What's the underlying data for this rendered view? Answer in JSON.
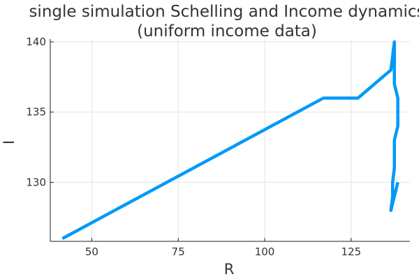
{
  "chart_data": {
    "type": "line",
    "title": "single simulation Schelling and Income dynamics",
    "subtitle": "(uniform income data)",
    "xlabel": "R",
    "ylabel": "I",
    "xlim": [
      38,
      142
    ],
    "ylim": [
      125.8,
      140.2
    ],
    "xticks": [
      50,
      75,
      100,
      125
    ],
    "yticks": [
      130,
      135,
      140
    ],
    "grid": true,
    "legend": "none",
    "series": [
      {
        "name": "y1",
        "color": "#009AF9",
        "x": [
          41.5,
          117,
          127,
          136.5,
          137.5,
          137.5,
          138.5,
          138.5,
          137.5,
          137.5,
          137,
          137,
          136.5,
          138.5
        ],
        "y": [
          126,
          136,
          136,
          138,
          140,
          137,
          136,
          134,
          133,
          131,
          130,
          129,
          128,
          130
        ]
      }
    ]
  }
}
